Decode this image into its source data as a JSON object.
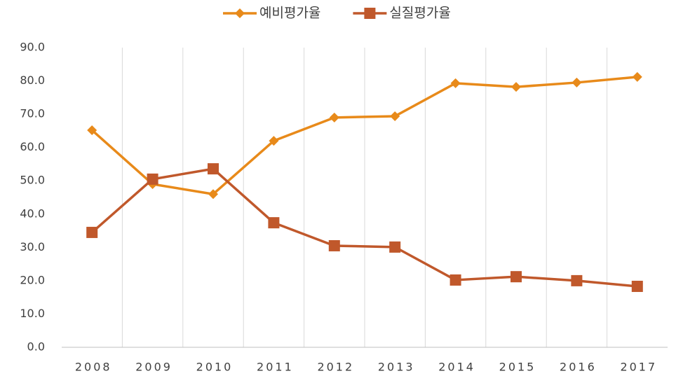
{
  "chart_data": {
    "type": "line",
    "categories": [
      "2008",
      "2009",
      "2010",
      "2011",
      "2012",
      "2013",
      "2014",
      "2015",
      "2016",
      "2017"
    ],
    "series": [
      {
        "name": "예비평가율",
        "color": "#e88a1a",
        "marker": "diamond",
        "values": [
          65.2,
          49.0,
          46.0,
          62.0,
          69.0,
          69.4,
          79.3,
          78.2,
          79.5,
          81.2
        ]
      },
      {
        "name": "실질평가율",
        "color": "#c0582b",
        "marker": "square",
        "values": [
          34.5,
          50.5,
          53.6,
          37.4,
          30.5,
          30.1,
          20.2,
          21.2,
          20.0,
          18.3
        ]
      }
    ],
    "ylim": [
      0,
      90
    ],
    "yticks": [
      {
        "value": 0,
        "label": "0.0"
      },
      {
        "value": 10,
        "label": "10.0"
      },
      {
        "value": 20,
        "label": "20.0"
      },
      {
        "value": 30,
        "label": "30.0"
      },
      {
        "value": 40,
        "label": "40.0"
      },
      {
        "value": 50,
        "label": "50.0"
      },
      {
        "value": 60,
        "label": "60.0"
      },
      {
        "value": 70,
        "label": "70.0"
      },
      {
        "value": 80,
        "label": "80.0"
      },
      {
        "value": 90,
        "label": "90.0"
      }
    ],
    "grid": "x",
    "legend": "top"
  }
}
